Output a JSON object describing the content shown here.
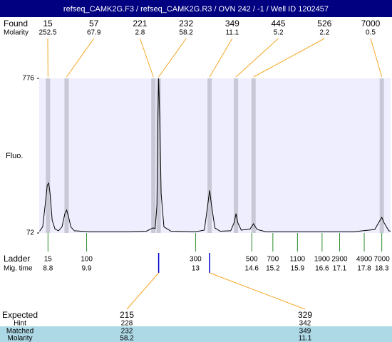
{
  "chart_data": {
    "type": "electropherogram",
    "title": "refseq_CAMK2G.F3 / refseq_CAMK2G.R3 / OVN 242 / -1 / Well ID 1202457",
    "ylabel": "Fluo.",
    "ylim": [
      72,
      776
    ],
    "yticks": [
      72,
      776
    ],
    "xlim": [
      8.55,
      18.55
    ],
    "found": {
      "label": "Found",
      "sublabel": "Molarity",
      "sizes": [
        15,
        57,
        221,
        232,
        349,
        445,
        526,
        7000
      ],
      "molarity": [
        252.5,
        67.9,
        2.8,
        58.2,
        11.1,
        5.2,
        2.2,
        0.5
      ],
      "times": [
        8.8,
        9.33,
        11.8,
        11.95,
        13.4,
        14.15,
        14.65,
        18.3
      ]
    },
    "ladder": {
      "label": "Ladder",
      "sublabel": "Mig. time",
      "sizes": [
        15,
        100,
        300,
        500,
        700,
        1100,
        1900,
        2900,
        4900,
        7000
      ],
      "times": [
        8.8,
        9.9,
        13,
        14.6,
        15.2,
        15.9,
        16.6,
        17.1,
        17.8,
        18.3
      ]
    },
    "trace": {
      "x": [
        8.56,
        8.65,
        8.72,
        8.78,
        8.82,
        8.86,
        8.92,
        9.0,
        9.1,
        9.2,
        9.28,
        9.33,
        9.38,
        9.45,
        9.55,
        10.0,
        11.0,
        11.6,
        11.75,
        11.8,
        11.85,
        11.9,
        11.93,
        11.95,
        11.98,
        12.02,
        12.1,
        12.3,
        13.0,
        13.25,
        13.33,
        13.4,
        13.46,
        13.55,
        13.7,
        14.0,
        14.1,
        14.15,
        14.2,
        14.3,
        14.55,
        14.65,
        14.75,
        15.0,
        17.5,
        18.1,
        18.25,
        18.3,
        18.36,
        18.5,
        18.55
      ],
      "y": [
        80,
        100,
        200,
        290,
        299,
        250,
        130,
        90,
        82,
        100,
        160,
        176,
        150,
        100,
        82,
        78,
        78,
        80,
        92,
        95,
        92,
        200,
        600,
        776,
        600,
        250,
        100,
        80,
        78,
        85,
        180,
        266,
        190,
        95,
        80,
        82,
        120,
        160,
        120,
        85,
        90,
        114,
        88,
        78,
        78,
        88,
        130,
        143,
        120,
        82,
        80
      ]
    },
    "expected": {
      "label": "Expected",
      "sizes": [
        215,
        329
      ],
      "hint_label": "Hint",
      "hint": [
        228,
        342
      ],
      "matched_label": "Matched",
      "matched": [
        232,
        349
      ],
      "molarity_label": "Molarity",
      "molarity": [
        58.2,
        11.1
      ]
    }
  }
}
